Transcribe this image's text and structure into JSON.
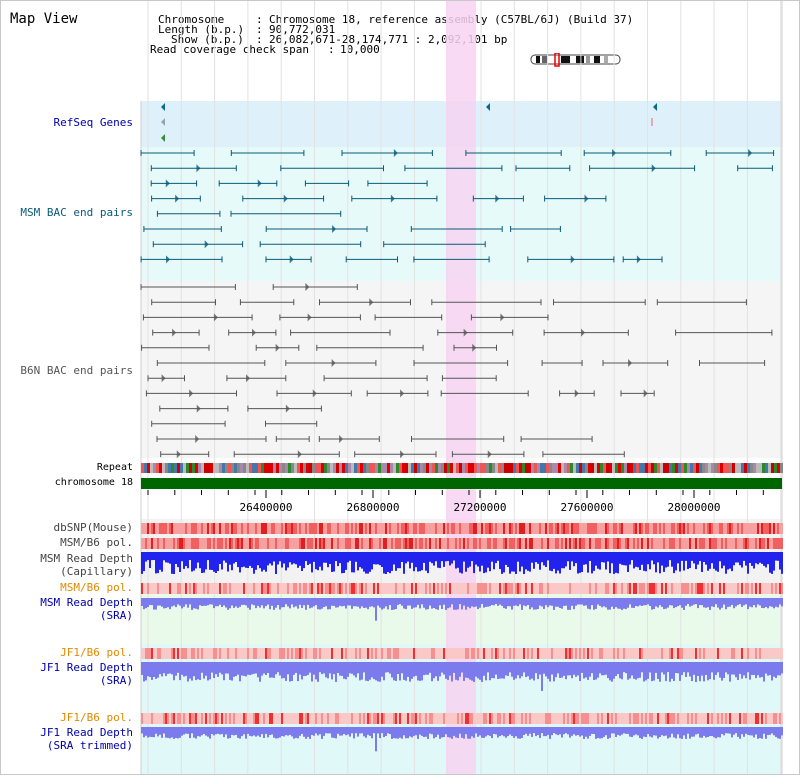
{
  "page_title": "Map View",
  "info": {
    "chromosome_key": "Chromosome",
    "chromosome_val": "Chromosome 18, reference assembly (C57BL/6J) (Build 37)",
    "length_key": "Length (b.p.)",
    "length_val": "90,772,031",
    "show_key": "Show (b.p.)",
    "show_val": "26,082,671-28,174,771 : 2,092,101 bp",
    "coverage_key": "Read coverage check span",
    "coverage_val": "10,000"
  },
  "tracks": {
    "refseq": "RefSeq Genes",
    "msm_bac": "MSM BAC end pairs",
    "b6n_bac": "B6N BAC end pairs",
    "repeat": "Repeat",
    "chromosome": "chromosome 18",
    "dbsnp": "dbSNP(Mouse)",
    "msm_b6_pol_1": "MSM/B6 pol.",
    "msm_depth_cap_1": "MSM Read Depth",
    "msm_depth_cap_2": "(Capillary)",
    "msm_b6_pol_2": "MSM/B6 pol.",
    "msm_depth_sra_1": "MSM Read Depth",
    "msm_depth_sra_2": "(SRA)",
    "jf1_b6_pol_1": "JF1/B6 pol.",
    "jf1_depth_sra_1": "JF1 Read Depth",
    "jf1_depth_sra_2": "(SRA)",
    "jf1_b6_pol_2": "JF1/B6 pol.",
    "jf1_depth_trim_1": "JF1 Read Depth",
    "jf1_depth_trim_2": "(SRA trimmed)"
  },
  "axis_ticks": [
    "26400000",
    "26800000",
    "27200000",
    "27600000",
    "28000000"
  ],
  "colors": {
    "track_blue_label": "#0000aa",
    "track_teal_label": "#0a5a78",
    "pol_label": "#e08a00",
    "refseq_bg": "#def0fa",
    "msm_bg": "#e6fafa",
    "b6n_bg": "#f5f5f5",
    "highlight": "#f7d4f2",
    "chromosome_bar": "#006600",
    "depth_blue": "#2323ee",
    "depth_light": "#7b7bee"
  }
}
